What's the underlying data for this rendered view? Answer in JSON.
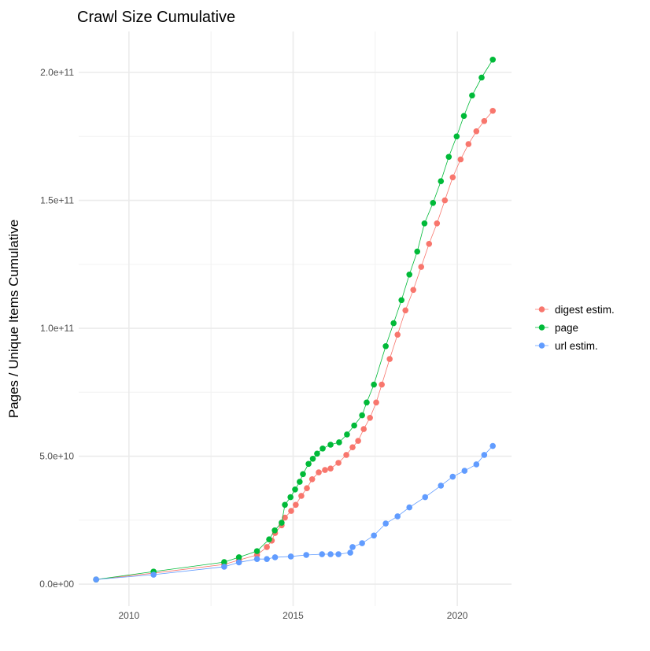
{
  "chart_data": {
    "type": "line",
    "title": "Crawl Size Cumulative",
    "xlabel": "",
    "ylabel": "Pages / Unique Items Cumulative",
    "xlim": [
      2008.47,
      2021.65
    ],
    "ylim": [
      -8600000000.0,
      216000000000.0
    ],
    "x_ticks": [
      2010,
      2015,
      2020
    ],
    "x_tick_labels": [
      "2010",
      "2015",
      "2020"
    ],
    "y_ticks": [
      0,
      50000000000.0,
      100000000000.0,
      150000000000.0,
      200000000000.0
    ],
    "y_tick_labels": [
      "0.0e+00",
      "5.0e+10",
      "1.0e+11",
      "1.5e+11",
      "2.0e+11"
    ],
    "grid": true,
    "markers": true,
    "legend_position": "right",
    "series": [
      {
        "name": "digest estim.",
        "color": "#F8766D",
        "points": [
          [
            2009.0,
            1800000000.0
          ],
          [
            2010.75,
            4300000000.0
          ],
          [
            2012.9,
            7700000000.0
          ],
          [
            2013.35,
            9400000000.0
          ],
          [
            2013.9,
            11400000000.0
          ],
          [
            2014.2,
            14500000000.0
          ],
          [
            2014.35,
            17000000000.0
          ],
          [
            2014.45,
            20000000000.0
          ],
          [
            2014.65,
            23000000000.0
          ],
          [
            2014.75,
            26000000000.0
          ],
          [
            2014.94,
            28600000000.0
          ],
          [
            2015.08,
            31000000000.0
          ],
          [
            2015.25,
            34500000000.0
          ],
          [
            2015.42,
            37500000000.0
          ],
          [
            2015.58,
            41000000000.0
          ],
          [
            2015.78,
            43700000000.0
          ],
          [
            2015.97,
            44600000000.0
          ],
          [
            2016.14,
            45200000000.0
          ],
          [
            2016.38,
            47400000000.0
          ],
          [
            2016.62,
            50500000000.0
          ],
          [
            2016.81,
            53500000000.0
          ],
          [
            2016.98,
            56000000000.0
          ],
          [
            2017.15,
            60600000000.0
          ],
          [
            2017.34,
            65000000000.0
          ],
          [
            2017.53,
            71000000000.0
          ],
          [
            2017.7,
            78000000000.0
          ],
          [
            2017.94,
            88000000000.0
          ],
          [
            2018.18,
            97500000000.0
          ],
          [
            2018.42,
            107000000000.0
          ],
          [
            2018.66,
            115000000000.0
          ],
          [
            2018.9,
            124000000000.0
          ],
          [
            2019.14,
            133000000000.0
          ],
          [
            2019.38,
            141000000000.0
          ],
          [
            2019.62,
            150000000000.0
          ],
          [
            2019.86,
            159000000000.0
          ],
          [
            2020.1,
            166000000000.0
          ],
          [
            2020.34,
            172000000000.0
          ],
          [
            2020.58,
            177000000000.0
          ],
          [
            2020.82,
            181000000000.0
          ],
          [
            2021.08,
            185000000000.0
          ]
        ]
      },
      {
        "name": "page",
        "color": "#00BA38",
        "points": [
          [
            2009.0,
            1800000000.0
          ],
          [
            2010.75,
            4900000000.0
          ],
          [
            2012.9,
            8600000000.0
          ],
          [
            2013.35,
            10500000000.0
          ],
          [
            2013.9,
            12900000000.0
          ],
          [
            2014.27,
            17500000000.0
          ],
          [
            2014.44,
            21000000000.0
          ],
          [
            2014.65,
            24000000000.0
          ],
          [
            2014.75,
            31000000000.0
          ],
          [
            2014.92,
            34000000000.0
          ],
          [
            2015.06,
            37000000000.0
          ],
          [
            2015.2,
            40000000000.0
          ],
          [
            2015.3,
            43000000000.0
          ],
          [
            2015.47,
            47000000000.0
          ],
          [
            2015.6,
            49000000000.0
          ],
          [
            2015.73,
            51000000000.0
          ],
          [
            2015.9,
            53000000000.0
          ],
          [
            2016.14,
            54500000000.0
          ],
          [
            2016.4,
            55400000000.0
          ],
          [
            2016.64,
            58500000000.0
          ],
          [
            2016.86,
            62000000000.0
          ],
          [
            2017.1,
            66000000000.0
          ],
          [
            2017.24,
            71000000000.0
          ],
          [
            2017.46,
            78000000000.0
          ],
          [
            2017.82,
            93000000000.0
          ],
          [
            2018.06,
            102000000000.0
          ],
          [
            2018.3,
            111000000000.0
          ],
          [
            2018.54,
            121000000000.0
          ],
          [
            2018.78,
            130000000000.0
          ],
          [
            2019.0,
            141000000000.0
          ],
          [
            2019.26,
            149000000000.0
          ],
          [
            2019.5,
            157500000000.0
          ],
          [
            2019.74,
            167000000000.0
          ],
          [
            2019.98,
            175000000000.0
          ],
          [
            2020.2,
            183000000000.0
          ],
          [
            2020.45,
            191000000000.0
          ],
          [
            2020.74,
            198000000000.0
          ],
          [
            2021.08,
            205000000000.0
          ]
        ]
      },
      {
        "name": "url estim.",
        "color": "#619CFF",
        "points": [
          [
            2009.0,
            1800000000.0
          ],
          [
            2010.75,
            3700000000.0
          ],
          [
            2012.9,
            6800000000.0
          ],
          [
            2013.35,
            8500000000.0
          ],
          [
            2013.9,
            9800000000.0
          ],
          [
            2014.2,
            9800000000.0
          ],
          [
            2014.45,
            10500000000.0
          ],
          [
            2014.93,
            10800000000.0
          ],
          [
            2015.4,
            11400000000.0
          ],
          [
            2015.88,
            11700000000.0
          ],
          [
            2016.14,
            11700000000.0
          ],
          [
            2016.38,
            11700000000.0
          ],
          [
            2016.74,
            12300000000.0
          ],
          [
            2016.81,
            14500000000.0
          ],
          [
            2017.1,
            16000000000.0
          ],
          [
            2017.46,
            19000000000.0
          ],
          [
            2017.82,
            23700000000.0
          ],
          [
            2018.18,
            26500000000.0
          ],
          [
            2018.54,
            30000000000.0
          ],
          [
            2019.02,
            34000000000.0
          ],
          [
            2019.5,
            38500000000.0
          ],
          [
            2019.86,
            42000000000.0
          ],
          [
            2020.22,
            44300000000.0
          ],
          [
            2020.58,
            46800000000.0
          ],
          [
            2020.82,
            50500000000.0
          ],
          [
            2021.08,
            54000000000.0
          ]
        ]
      }
    ]
  }
}
